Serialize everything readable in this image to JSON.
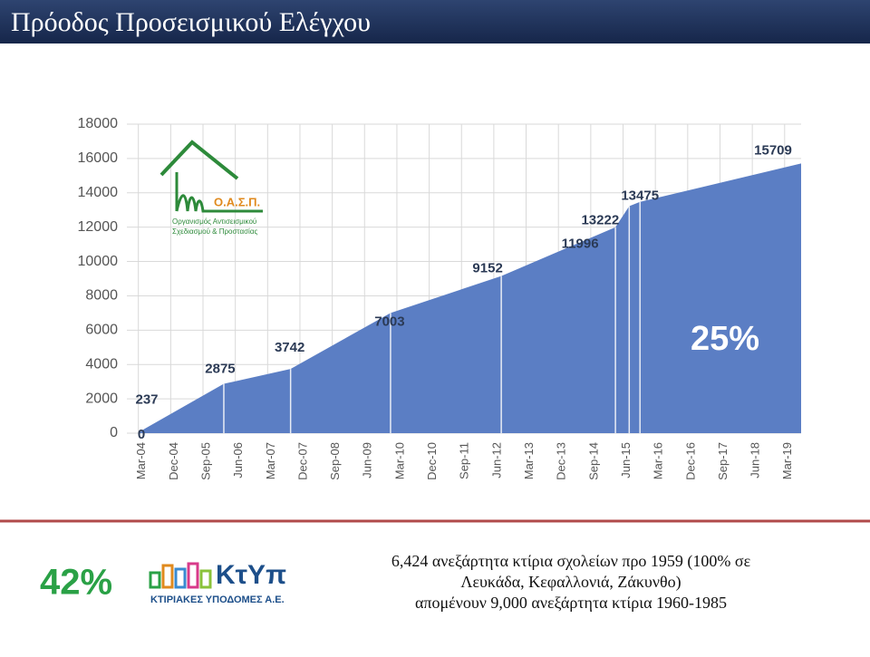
{
  "header": {
    "title": "Πρόοδος Προσεισμικού Ελέγχου"
  },
  "chart_data": {
    "type": "area",
    "color": "#5b7ec4",
    "x": [
      2004.17,
      2004.3,
      2006.15,
      2007.7,
      2010.02,
      2012.59,
      2015.24,
      2015.56,
      2015.81,
      2019.55
    ],
    "values": [
      0,
      237,
      2875,
      3742,
      7003,
      9152,
      11996,
      13222,
      13475,
      15709
    ],
    "xlim": [
      2003.9,
      2019.55
    ],
    "xticks": [
      {
        "value": 2004.167,
        "label": "Mar-04"
      },
      {
        "value": 2004.917,
        "label": "Dec-04"
      },
      {
        "value": 2005.667,
        "label": "Sep-05"
      },
      {
        "value": 2006.417,
        "label": "Jun-06"
      },
      {
        "value": 2007.167,
        "label": "Mar-07"
      },
      {
        "value": 2007.917,
        "label": "Dec-07"
      },
      {
        "value": 2008.667,
        "label": "Sep-08"
      },
      {
        "value": 2009.417,
        "label": "Jun-09"
      },
      {
        "value": 2010.167,
        "label": "Mar-10"
      },
      {
        "value": 2010.917,
        "label": "Dec-10"
      },
      {
        "value": 2011.667,
        "label": "Sep-11"
      },
      {
        "value": 2012.417,
        "label": "Jun-12"
      },
      {
        "value": 2013.167,
        "label": "Mar-13"
      },
      {
        "value": 2013.917,
        "label": "Dec-13"
      },
      {
        "value": 2014.667,
        "label": "Sep-14"
      },
      {
        "value": 2015.417,
        "label": "Jun-15"
      },
      {
        "value": 2016.167,
        "label": "Mar-16"
      },
      {
        "value": 2016.917,
        "label": "Dec-16"
      },
      {
        "value": 2017.667,
        "label": "Sep-17"
      },
      {
        "value": 2018.417,
        "label": "Jun-18"
      },
      {
        "value": 2019.167,
        "label": "Mar-19"
      }
    ],
    "ylim": [
      0,
      18000
    ],
    "yticks": [
      0,
      2000,
      4000,
      6000,
      8000,
      10000,
      12000,
      14000,
      16000,
      18000
    ],
    "grid": true,
    "annotation": "25%"
  },
  "logos": {
    "oasp_name": "Ο.Α.Σ.Π.",
    "oasp_line1": "Οργανισμός Αντισεισμικού",
    "oasp_line2": "Σχεδιασμού & Προστασίας",
    "ktyp_name": "ΚτΥπ",
    "ktyp_sub": "ΚΤΙΡΙΑΚΕΣ ΥΠΟΔΟΜΕΣ Α.Ε."
  },
  "footer": {
    "stat": "42%",
    "lines": [
      "6,424 ανεξάρτητα κτίρια σχολείων προ 1959 (100% σε",
      "Λευκάδα, Κεφαλλονιά, Ζάκυνθο)",
      "απομένουν 9,000 ανεξάρτητα κτίρια 1960-1985"
    ]
  }
}
